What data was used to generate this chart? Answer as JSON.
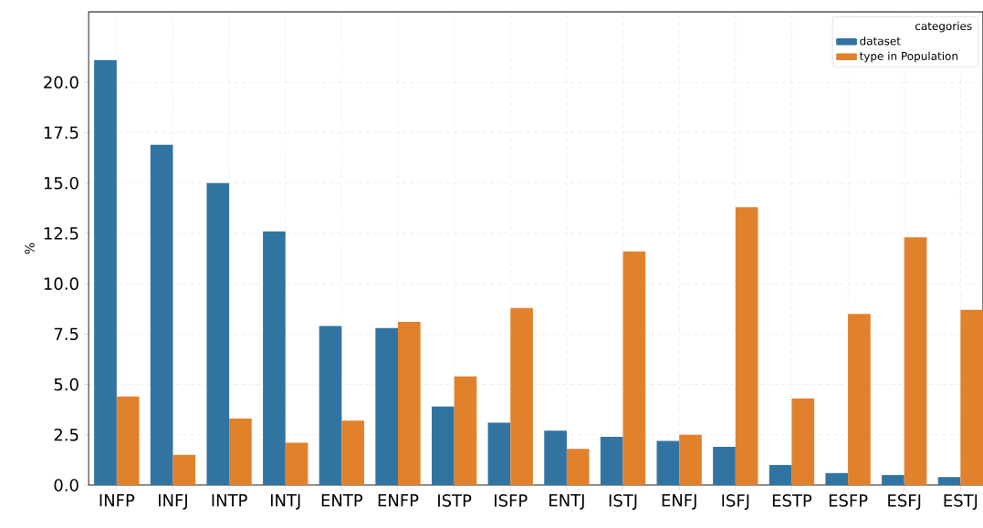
{
  "chart_data": {
    "type": "bar",
    "ylabel": "%",
    "legend_title": "categories",
    "categories": [
      "INFP",
      "INFJ",
      "INTP",
      "INTJ",
      "ENTP",
      "ENFP",
      "ISTP",
      "ISFP",
      "ENTJ",
      "ISTJ",
      "ENFJ",
      "ISFJ",
      "ESTP",
      "ESFP",
      "ESFJ",
      "ESTJ"
    ],
    "series": [
      {
        "name": "dataset",
        "color": "#3274a1",
        "values": [
          21.1,
          16.9,
          15.0,
          12.6,
          7.9,
          7.8,
          3.9,
          3.1,
          2.7,
          2.4,
          2.2,
          1.9,
          1.0,
          0.6,
          0.5,
          0.4
        ]
      },
      {
        "name": "type in Population",
        "color": "#e1812c",
        "values": [
          4.4,
          1.5,
          3.3,
          2.1,
          3.2,
          8.1,
          5.4,
          8.8,
          1.8,
          11.6,
          2.5,
          13.8,
          4.3,
          8.5,
          12.3,
          8.7
        ]
      }
    ],
    "ylim": [
      0,
      23.5
    ],
    "yticks": [
      {
        "value": 0,
        "label": "0.0"
      },
      {
        "value": 2.5,
        "label": "2.5"
      },
      {
        "value": 5,
        "label": "5.0"
      },
      {
        "value": 7.5,
        "label": "7.5"
      },
      {
        "value": 10,
        "label": "10.0"
      },
      {
        "value": 12.5,
        "label": "12.5"
      },
      {
        "value": 15,
        "label": "15.0"
      },
      {
        "value": 17.5,
        "label": "17.5"
      },
      {
        "value": 20,
        "label": "20.0"
      }
    ],
    "grid": true,
    "legend": "top right"
  }
}
